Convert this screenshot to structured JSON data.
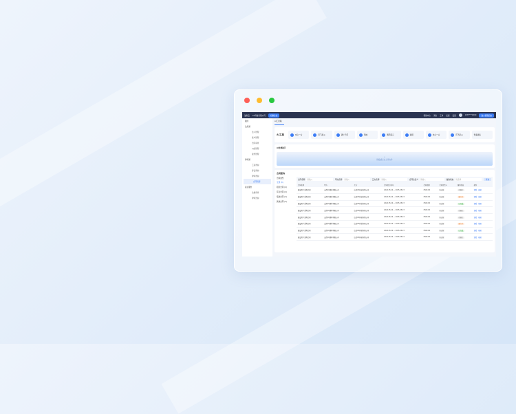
{
  "window": {
    "controls": [
      "close",
      "minimize",
      "maximize"
    ],
    "colors": {
      "close": "#fe5f57",
      "minimize": "#febc2e",
      "maximize": "#28c840"
    }
  },
  "header": {
    "logo": "法务云",
    "company": "XX科技有限公司",
    "badge": "切换企业",
    "links": [
      "帮助中心",
      "消息",
      "工单",
      "反馈",
      "设置"
    ],
    "user": "138****0000",
    "cta": "进入管理后台"
  },
  "sidebar": {
    "items": [
      {
        "label": "我的",
        "children": []
      },
      {
        "label": "法务通",
        "children": [
          "法人管理",
          "客户管理",
          "合同审查",
          "纠纷管理",
          "案件管理"
        ]
      },
      {
        "label": "律师通",
        "children": [
          "工商查询",
          "诉讼查询",
          "律师查询",
          "合同管理"
        ]
      },
      {
        "label": "商业服务",
        "children": [
          "合规审查",
          "律师咨询"
        ]
      }
    ],
    "active": "合同管理"
  },
  "breadcrumb": "AI工具箱",
  "ai_tools": {
    "title": "AI工具",
    "items": [
      "文心一言",
      "讯飞星火",
      "通义千问",
      "剪映",
      "腾讯混元",
      "秘塔",
      "文心一言",
      "讯飞星火"
    ],
    "more": "查看更多"
  },
  "ai_assistant": {
    "title": "AI法律助手",
    "upload": "拖拽或点击上传文件"
  },
  "contracts": {
    "title": "合同查询",
    "categories": {
      "title": "合同类型",
      "items": [
        "全部 (8)",
        "租赁合同 (2)",
        "买卖合同 (2)",
        "借款合同 (2)",
        "其他合同 (2)"
      ]
    },
    "filters": [
      {
        "label": "合同名称",
        "placeholder": "请输入"
      },
      {
        "label": "甲方名称",
        "placeholder": "请输入"
      },
      {
        "label": "乙方名称",
        "placeholder": "请输入"
      },
      {
        "label": "合同负责人",
        "placeholder": "请输入"
      },
      {
        "label": "履约状态",
        "placeholder": "请选择"
      }
    ],
    "search": "查询",
    "columns": [
      "合同名称",
      "甲方",
      "乙方",
      "合同起止时间",
      "合同金额",
      "合同负责人",
      "履约状态",
      "操作"
    ],
    "rows": [
      [
        "建设用户采购合同",
        "山西XX建材有限公司",
        "山西XX科技有限公司",
        "2024.05.24 ~ 2025.05.23",
        "2500.00",
        "张五新",
        "待履行"
      ],
      [
        "建设用户采购合同",
        "山西XX建材有限公司",
        "山西XX科技有限公司",
        "2024.05.24 ~ 2025.05.23",
        "2500.00",
        "张五新",
        "履行中"
      ],
      [
        "建设用户采购合同",
        "山西XX建材有限公司",
        "山西XX科技有限公司",
        "2024.05.24 ~ 2025.05.23",
        "2500.00",
        "张五新",
        "已完成"
      ],
      [
        "建设用户采购合同",
        "山西XX建材有限公司",
        "山西XX科技有限公司",
        "2024.05.24 ~ 2025.05.23",
        "2500.00",
        "张五新",
        "待履行"
      ],
      [
        "建设用户采购合同",
        "山西XX建材有限公司",
        "山西XX科技有限公司",
        "2024.05.24 ~ 2025.05.23",
        "2500.00",
        "张五新",
        "待履行"
      ],
      [
        "建设用户采购合同",
        "山西XX建材有限公司",
        "山西XX科技有限公司",
        "2024.05.24 ~ 2025.05.23",
        "2500.00",
        "张五新",
        "履行中"
      ],
      [
        "建设用户采购合同",
        "山西XX建材有限公司",
        "山西XX科技有限公司",
        "2024.05.24 ~ 2025.05.23",
        "2500.00",
        "张五新",
        "已完成"
      ],
      [
        "建设用户采购合同",
        "山西XX建材有限公司",
        "山西XX科技有限公司",
        "2024.05.24 ~ 2025.05.23",
        "2500.00",
        "张五新",
        "待履行"
      ]
    ],
    "actions": [
      "查看",
      "编辑"
    ],
    "status_colors": {
      "待履行": "#888888",
      "履行中": "#f08a3c",
      "已完成": "#3cb043"
    }
  }
}
